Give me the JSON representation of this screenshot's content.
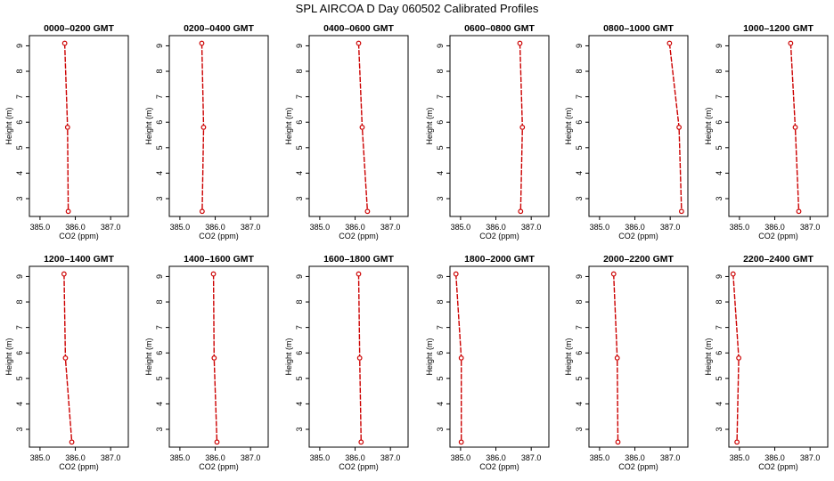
{
  "figure": {
    "title": "SPL AIRCOA D  Day 060502  Calibrated Profiles",
    "line_color": "#cc0000",
    "axis_color": "#000000"
  },
  "chart_data": [
    {
      "type": "line",
      "title": "0000–0200 GMT",
      "xlabel": "CO2 (ppm)",
      "ylabel": "Height (m)",
      "xlim": [
        384.7,
        387.5
      ],
      "ylim": [
        2.3,
        9.4
      ],
      "xticks": [
        "385.0",
        "386.0",
        "387.0"
      ],
      "yticks": [
        "3",
        "4",
        "5",
        "6",
        "7",
        "8",
        "9"
      ],
      "series": [
        {
          "x": [
            385.7,
            385.78,
            385.8
          ],
          "y": [
            9.1,
            5.8,
            2.5
          ]
        }
      ]
    },
    {
      "type": "line",
      "title": "0200–0400 GMT",
      "xlabel": "CO2 (ppm)",
      "ylabel": "Height (m)",
      "xlim": [
        384.7,
        387.5
      ],
      "ylim": [
        2.3,
        9.4
      ],
      "xticks": [
        "385.0",
        "386.0",
        "387.0"
      ],
      "yticks": [
        "3",
        "4",
        "5",
        "6",
        "7",
        "8",
        "9"
      ],
      "series": [
        {
          "x": [
            385.62,
            385.67,
            385.63
          ],
          "y": [
            9.1,
            5.8,
            2.5
          ]
        }
      ]
    },
    {
      "type": "line",
      "title": "0400–0600 GMT",
      "xlabel": "CO2 (ppm)",
      "ylabel": "Height (m)",
      "xlim": [
        384.7,
        387.5
      ],
      "ylim": [
        2.3,
        9.4
      ],
      "xticks": [
        "385.0",
        "386.0",
        "387.0"
      ],
      "yticks": [
        "3",
        "4",
        "5",
        "6",
        "7",
        "8",
        "9"
      ],
      "series": [
        {
          "x": [
            386.1,
            386.2,
            386.35
          ],
          "y": [
            9.1,
            5.8,
            2.5
          ]
        }
      ]
    },
    {
      "type": "line",
      "title": "0600–0800 GMT",
      "xlabel": "CO2 (ppm)",
      "ylabel": "Height (m)",
      "xlim": [
        384.7,
        387.5
      ],
      "ylim": [
        2.3,
        9.4
      ],
      "xticks": [
        "385.0",
        "386.0",
        "387.0"
      ],
      "yticks": [
        "3",
        "4",
        "5",
        "6",
        "7",
        "8",
        "9"
      ],
      "series": [
        {
          "x": [
            386.68,
            386.75,
            386.7
          ],
          "y": [
            9.1,
            5.8,
            2.5
          ]
        }
      ]
    },
    {
      "type": "line",
      "title": "0800–1000 GMT",
      "xlabel": "CO2 (ppm)",
      "ylabel": "Height (m)",
      "xlim": [
        384.7,
        387.5
      ],
      "ylim": [
        2.3,
        9.4
      ],
      "xticks": [
        "385.0",
        "386.0",
        "387.0"
      ],
      "yticks": [
        "3",
        "4",
        "5",
        "6",
        "7",
        "8",
        "9"
      ],
      "series": [
        {
          "x": [
            386.98,
            387.25,
            387.32
          ],
          "y": [
            9.1,
            5.8,
            2.5
          ]
        }
      ]
    },
    {
      "type": "line",
      "title": "1000–1200 GMT",
      "xlabel": "CO2 (ppm)",
      "ylabel": "Height (m)",
      "xlim": [
        384.7,
        387.5
      ],
      "ylim": [
        2.3,
        9.4
      ],
      "xticks": [
        "385.0",
        "386.0",
        "387.0"
      ],
      "yticks": [
        "3",
        "4",
        "5",
        "6",
        "7",
        "8",
        "9"
      ],
      "series": [
        {
          "x": [
            386.45,
            386.58,
            386.68
          ],
          "y": [
            9.1,
            5.8,
            2.5
          ]
        }
      ]
    },
    {
      "type": "line",
      "title": "1200–1400 GMT",
      "xlabel": "CO2 (ppm)",
      "ylabel": "Height (m)",
      "xlim": [
        384.7,
        387.5
      ],
      "ylim": [
        2.3,
        9.4
      ],
      "xticks": [
        "385.0",
        "386.0",
        "387.0"
      ],
      "yticks": [
        "3",
        "4",
        "5",
        "6",
        "7",
        "8",
        "9"
      ],
      "series": [
        {
          "x": [
            385.68,
            385.72,
            385.9
          ],
          "y": [
            9.1,
            5.8,
            2.5
          ]
        }
      ]
    },
    {
      "type": "line",
      "title": "1400–1600 GMT",
      "xlabel": "CO2 (ppm)",
      "ylabel": "Height (m)",
      "xlim": [
        384.7,
        387.5
      ],
      "ylim": [
        2.3,
        9.4
      ],
      "xticks": [
        "385.0",
        "386.0",
        "387.0"
      ],
      "yticks": [
        "3",
        "4",
        "5",
        "6",
        "7",
        "8",
        "9"
      ],
      "series": [
        {
          "x": [
            385.95,
            385.97,
            386.05
          ],
          "y": [
            9.1,
            5.8,
            2.5
          ]
        }
      ]
    },
    {
      "type": "line",
      "title": "1600–1800 GMT",
      "xlabel": "CO2 (ppm)",
      "ylabel": "Height (m)",
      "xlim": [
        384.7,
        387.5
      ],
      "ylim": [
        2.3,
        9.4
      ],
      "xticks": [
        "385.0",
        "386.0",
        "387.0"
      ],
      "yticks": [
        "3",
        "4",
        "5",
        "6",
        "7",
        "8",
        "9"
      ],
      "series": [
        {
          "x": [
            386.1,
            386.13,
            386.17
          ],
          "y": [
            9.1,
            5.8,
            2.5
          ]
        }
      ]
    },
    {
      "type": "line",
      "title": "1800–2000 GMT",
      "xlabel": "CO2 (ppm)",
      "ylabel": "Height (m)",
      "xlim": [
        384.7,
        387.5
      ],
      "ylim": [
        2.3,
        9.4
      ],
      "xticks": [
        "385.0",
        "386.0",
        "387.0"
      ],
      "yticks": [
        "3",
        "4",
        "5",
        "6",
        "7",
        "8",
        "9"
      ],
      "series": [
        {
          "x": [
            384.87,
            385.02,
            385.02
          ],
          "y": [
            9.1,
            5.8,
            2.5
          ]
        }
      ]
    },
    {
      "type": "line",
      "title": "2000–2200 GMT",
      "xlabel": "CO2 (ppm)",
      "ylabel": "Height (m)",
      "xlim": [
        384.7,
        387.5
      ],
      "ylim": [
        2.3,
        9.4
      ],
      "xticks": [
        "385.0",
        "386.0",
        "387.0"
      ],
      "yticks": [
        "3",
        "4",
        "5",
        "6",
        "7",
        "8",
        "9"
      ],
      "series": [
        {
          "x": [
            385.4,
            385.5,
            385.52
          ],
          "y": [
            9.1,
            5.8,
            2.5
          ]
        }
      ]
    },
    {
      "type": "line",
      "title": "2200–2400 GMT",
      "xlabel": "CO2 (ppm)",
      "ylabel": "Height (m)",
      "xlim": [
        384.7,
        387.5
      ],
      "ylim": [
        2.3,
        9.4
      ],
      "xticks": [
        "385.0",
        "386.0",
        "387.0"
      ],
      "yticks": [
        "3",
        "4",
        "5",
        "6",
        "7",
        "8",
        "9"
      ],
      "series": [
        {
          "x": [
            384.82,
            384.98,
            384.93
          ],
          "y": [
            9.1,
            5.8,
            2.5
          ]
        }
      ]
    }
  ]
}
